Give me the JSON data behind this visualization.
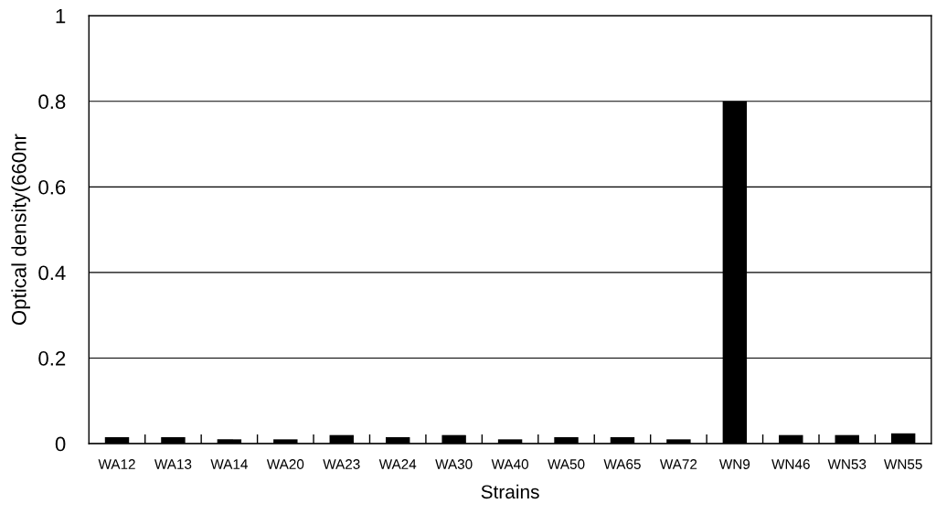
{
  "chart_data": {
    "type": "bar",
    "xlabel": "Strains",
    "ylabel": "Optical density(660nr",
    "categories": [
      "WA12",
      "WA13",
      "WA14",
      "WA20",
      "WA23",
      "WA24",
      "WA30",
      "WA40",
      "WA50",
      "WA65",
      "WA72",
      "WN9",
      "WN46",
      "WN53",
      "WN55"
    ],
    "values": [
      0.015,
      0.015,
      0.01,
      0.01,
      0.02,
      0.015,
      0.02,
      0.01,
      0.015,
      0.015,
      0.01,
      0.8,
      0.02,
      0.02,
      0.024
    ],
    "color": "#000000",
    "ylim": [
      0,
      1
    ],
    "yticks": [
      0,
      0.2,
      0.4,
      0.6,
      0.8,
      1
    ],
    "grid": "y",
    "legend": false
  }
}
